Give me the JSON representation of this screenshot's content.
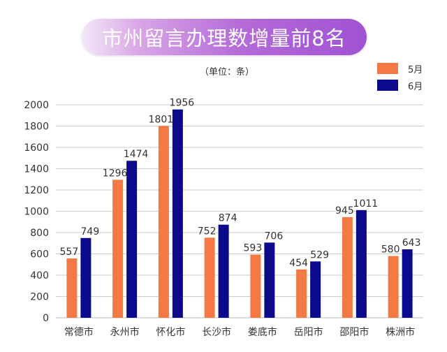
{
  "title": "市州留言办理数增量前8名",
  "unit": "（单位：条）",
  "colors": {
    "may": "#f47a45",
    "june": "#0b0a8c",
    "grid": "#cccccc",
    "text": "#333333"
  },
  "chart_data": {
    "type": "bar",
    "title": "市州留言办理数增量前8名",
    "categories": [
      "常德市",
      "永州市",
      "怀化市",
      "长沙市",
      "娄底市",
      "岳阳市",
      "邵阳市",
      "株洲市"
    ],
    "series": [
      {
        "name": "5月",
        "color": "#f47a45",
        "values": [
          557,
          1296,
          1801,
          752,
          593,
          454,
          945,
          580
        ]
      },
      {
        "name": "6月",
        "color": "#0b0a8c",
        "values": [
          749,
          1474,
          1956,
          874,
          706,
          529,
          1011,
          643
        ]
      }
    ],
    "yticks": [
      0,
      200,
      400,
      600,
      800,
      1000,
      1200,
      1400,
      1600,
      1800,
      2000
    ],
    "ylim": [
      0,
      2000
    ],
    "grid": true,
    "legend": "top-right"
  }
}
